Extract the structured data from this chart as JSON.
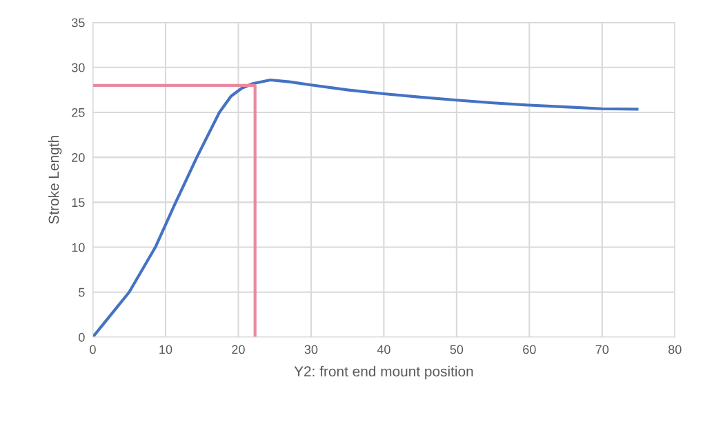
{
  "chart_data": {
    "type": "line",
    "xlabel": "Y2: front end mount position",
    "ylabel": "Stroke Length",
    "xlim": [
      0,
      80
    ],
    "xticks": [
      0,
      10,
      20,
      30,
      40,
      50,
      60,
      70,
      80
    ],
    "ylim": [
      0,
      35
    ],
    "yticks": [
      0,
      5,
      10,
      15,
      20,
      25,
      30,
      35
    ],
    "grid": true,
    "marker": "none",
    "line_style": "solid",
    "series": [
      {
        "color": "#4472c4",
        "x": [
          0,
          2.5,
          5,
          8.6,
          11.4,
          14.3,
          17.4,
          19,
          20.5,
          22,
          24.4,
          27,
          30,
          35,
          40,
          45,
          50,
          55,
          60,
          65,
          70,
          74.8
        ],
        "values": [
          0,
          2.5,
          5,
          10,
          15,
          20,
          25,
          26.8,
          27.7,
          28.2,
          28.6,
          28.4,
          28.05,
          27.5,
          27.07,
          26.7,
          26.36,
          26.05,
          25.8,
          25.6,
          25.4,
          25.35
        ]
      },
      {
        "color": "#e8899f",
        "x": [
          0,
          22.3,
          22.3
        ],
        "values": [
          28,
          28,
          0
        ]
      }
    ]
  }
}
